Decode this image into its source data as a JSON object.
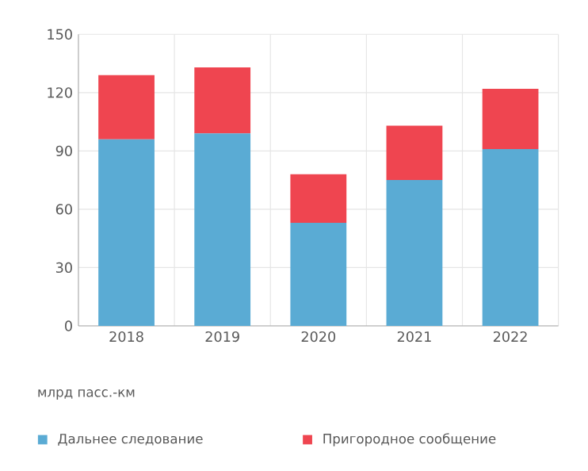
{
  "chart_data": {
    "type": "bar",
    "stacked": true,
    "categories": [
      "2018",
      "2019",
      "2020",
      "2021",
      "2022"
    ],
    "series": [
      {
        "name": "Дальнее следование",
        "color": "#5aabd4",
        "values": [
          96,
          99,
          53,
          75,
          91
        ]
      },
      {
        "name": "Пригородное сообщение",
        "color": "#ef4550",
        "values": [
          33,
          34,
          25,
          28,
          31
        ]
      }
    ],
    "ylabel": "млрд пасс.-км",
    "ylim": [
      0,
      150
    ],
    "yticks": [
      0,
      30,
      60,
      90,
      120,
      150
    ],
    "grid": true,
    "legend": "bottom"
  }
}
